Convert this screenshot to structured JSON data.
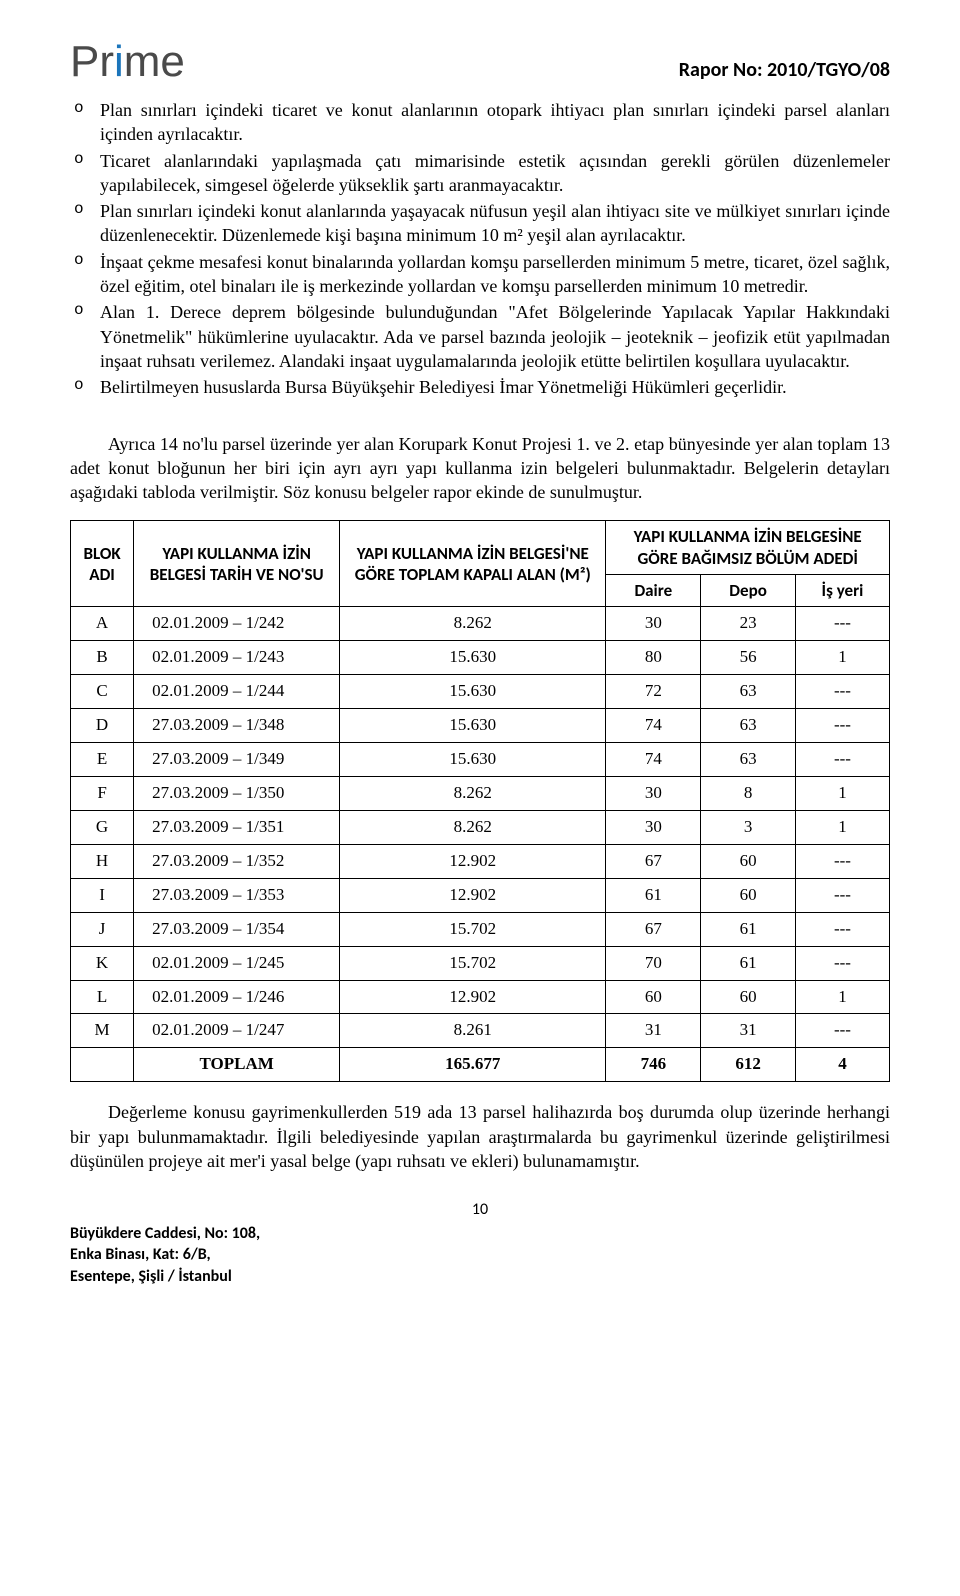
{
  "header": {
    "logo_main": "Pr",
    "logo_dot": "i",
    "logo_rest": "me",
    "report_no": "Rapor No: 2010/TGYO/08"
  },
  "bullets": [
    "Plan sınırları içindeki ticaret ve konut alanlarının otopark ihtiyacı plan sınırları içindeki parsel alanları içinden ayrılacaktır.",
    "Ticaret alanlarındaki yapılaşmada çatı mimarisinde estetik açısından gerekli görülen düzenlemeler yapılabilecek, simgesel öğelerde yükseklik şartı aranmayacaktır.",
    "Plan sınırları içindeki konut alanlarında yaşayacak nüfusun yeşil alan ihtiyacı site ve mülkiyet sınırları içinde düzenlenecektir. Düzenlemede kişi başına minimum 10 m² yeşil alan ayrılacaktır.",
    "İnşaat çekme mesafesi konut binalarında yollardan komşu parsellerden minimum 5 metre, ticaret, özel sağlık, özel eğitim, otel binaları ile iş merkezinde yollardan ve komşu parsellerden minimum 10 metredir.",
    "Alan 1. Derece deprem bölgesinde bulunduğundan \"Afet Bölgelerinde Yapılacak Yapılar Hakkındaki Yönetmelik\" hükümlerine uyulacaktır. Ada ve parsel bazında jeolojik – jeoteknik – jeofizik etüt yapılmadan inşaat ruhsatı verilemez. Alandaki inşaat uygulamalarında jeolojik etütte belirtilen koşullara uyulacaktır.",
    "Belirtilmeyen hususlarda Bursa Büyükşehir Belediyesi İmar Yönetmeliği Hükümleri geçerlidir."
  ],
  "para1": "Ayrıca 14 no'lu parsel üzerinde yer alan Korupark Konut Projesi 1. ve 2. etap bünyesinde yer alan toplam 13 adet konut bloğunun her biri için ayrı ayrı yapı kullanma izin belgeleri bulunmaktadır. Belgelerin detayları aşağıdaki tabloda verilmiştir. Söz konusu belgeler rapor ekinde de sunulmuştur.",
  "table": {
    "headers": {
      "c1": "BLOK ADI",
      "c2": "YAPI KULLANMA İZİN BELGESİ TARİH VE NO'SU",
      "c3": "YAPI KULLANMA İZİN BELGESİ'NE GÖRE TOPLAM KAPALI ALAN (M²)",
      "c4_top": "YAPI KULLANMA İZİN BELGESİNE GÖRE BAĞIMSIZ BÖLÜM ADEDİ",
      "c4a": "Daire",
      "c4b": "Depo",
      "c4c": "İş yeri"
    },
    "rows": [
      {
        "blk": "A",
        "no": "02.01.2009 – 1/242",
        "alan": "8.262",
        "daire": "30",
        "depo": "23",
        "is": "---"
      },
      {
        "blk": "B",
        "no": "02.01.2009 – 1/243",
        "alan": "15.630",
        "daire": "80",
        "depo": "56",
        "is": "1"
      },
      {
        "blk": "C",
        "no": "02.01.2009 – 1/244",
        "alan": "15.630",
        "daire": "72",
        "depo": "63",
        "is": "---"
      },
      {
        "blk": "D",
        "no": "27.03.2009 – 1/348",
        "alan": "15.630",
        "daire": "74",
        "depo": "63",
        "is": "---"
      },
      {
        "blk": "E",
        "no": "27.03.2009 – 1/349",
        "alan": "15.630",
        "daire": "74",
        "depo": "63",
        "is": "---"
      },
      {
        "blk": "F",
        "no": "27.03.2009 – 1/350",
        "alan": "8.262",
        "daire": "30",
        "depo": "8",
        "is": "1"
      },
      {
        "blk": "G",
        "no": "27.03.2009 – 1/351",
        "alan": "8.262",
        "daire": "30",
        "depo": "3",
        "is": "1"
      },
      {
        "blk": "H",
        "no": "27.03.2009 – 1/352",
        "alan": "12.902",
        "daire": "67",
        "depo": "60",
        "is": "---"
      },
      {
        "blk": "I",
        "no": "27.03.2009 – 1/353",
        "alan": "12.902",
        "daire": "61",
        "depo": "60",
        "is": "---"
      },
      {
        "blk": "J",
        "no": "27.03.2009 – 1/354",
        "alan": "15.702",
        "daire": "67",
        "depo": "61",
        "is": "---"
      },
      {
        "blk": "K",
        "no": "02.01.2009 – 1/245",
        "alan": "15.702",
        "daire": "70",
        "depo": "61",
        "is": "---"
      },
      {
        "blk": "L",
        "no": "02.01.2009 – 1/246",
        "alan": "12.902",
        "daire": "60",
        "depo": "60",
        "is": "1"
      },
      {
        "blk": "M",
        "no": "02.01.2009 – 1/247",
        "alan": "8.261",
        "daire": "31",
        "depo": "31",
        "is": "---"
      }
    ],
    "total": {
      "label": "TOPLAM",
      "alan": "165.677",
      "daire": "746",
      "depo": "612",
      "is": "4"
    }
  },
  "para2": "Değerleme konusu gayrimenkullerden 519 ada 13 parsel halihazırda boş durumda olup üzerinde herhangi bir yapı bulunmamaktadır. İlgili belediyesinde yapılan araştırmalarda bu gayrimenkul üzerinde geliştirilmesi düşünülen projeye ait mer'i yasal belge (yapı ruhsatı ve ekleri) bulunamamıştır.",
  "page_number": "10",
  "footer": {
    "l1": "Büyükdere Caddesi, No: 108,",
    "l2": "Enka Binası, Kat: 6/B,",
    "l3": "Esentepe, Şişli / İstanbul"
  }
}
